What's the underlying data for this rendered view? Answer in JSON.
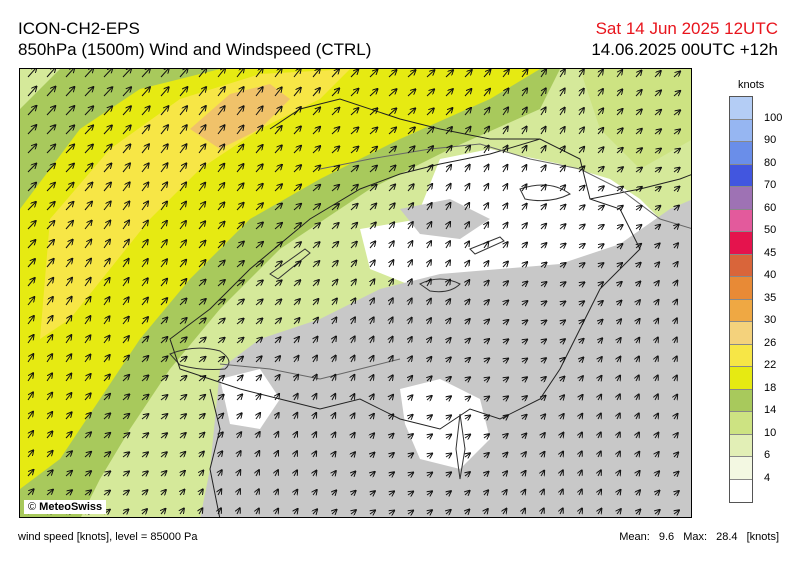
{
  "header": {
    "model": "ICON-CH2-EPS",
    "product": "850hPa (1500m) Wind and Windspeed (CTRL)",
    "valid_time": "Sat 14 Jun 2025 12UTC",
    "run_lead": "14.06.2025 00UTC +12h"
  },
  "map": {
    "copyright": "MeteoSwiss",
    "copyright_symbol": "©"
  },
  "legend": {
    "unit": "knots",
    "levels": [
      {
        "label": "100",
        "color": "#b4cdf5"
      },
      {
        "label": "90",
        "color": "#96b6f2"
      },
      {
        "label": "80",
        "color": "#6a8ee9"
      },
      {
        "label": "70",
        "color": "#4256df"
      },
      {
        "label": "60",
        "color": "#9e72b4"
      },
      {
        "label": "50",
        "color": "#e35a9c"
      },
      {
        "label": "45",
        "color": "#e5134d"
      },
      {
        "label": "40",
        "color": "#d9653a"
      },
      {
        "label": "35",
        "color": "#e88a36"
      },
      {
        "label": "30",
        "color": "#efa843"
      },
      {
        "label": "26",
        "color": "#f4d27c"
      },
      {
        "label": "22",
        "color": "#f7e646"
      },
      {
        "label": "18",
        "color": "#e6ea12"
      },
      {
        "label": "14",
        "color": "#a8c95c"
      },
      {
        "label": "10",
        "color": "#cde382"
      },
      {
        "label": "6",
        "color": "#e2efb6"
      },
      {
        "label": "4",
        "color": "#f3f8e2"
      },
      {
        "label": "",
        "color": "#ffffff"
      }
    ]
  },
  "colors": {
    "terrain_above_850hPa": "#c8c8c8",
    "calm": "#ffffff"
  },
  "footer": {
    "variable": "wind speed [knots], level = 85000 Pa",
    "mean_label": "Mean:",
    "mean_value": "9.6",
    "max_label": "Max:",
    "max_value": "28.4",
    "max_unit": "[knots]"
  }
}
